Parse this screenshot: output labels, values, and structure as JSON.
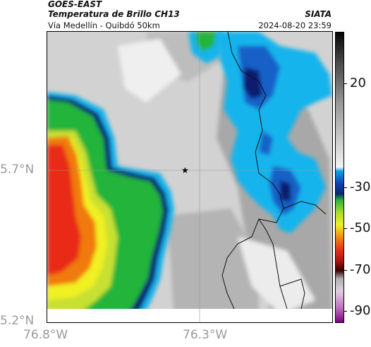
{
  "header": {
    "source": "GOES-EAST",
    "product": "Temperatura de Brillo CH13",
    "route": "Vía Medellín - Quibdó 50km",
    "agency": "SIATA",
    "datetime": "2024-08-20 23:59"
  },
  "axes": {
    "lat_labels": [
      "5.7°N",
      "5.2°N"
    ],
    "lon_labels": [
      "76.8°W",
      "76.3°W"
    ]
  },
  "colorbar": {
    "labels": [
      "20",
      "-30",
      "-50",
      "-70",
      "-90"
    ],
    "values": [
      20,
      -30,
      -50,
      -70,
      -90
    ],
    "range": [
      -95,
      45
    ],
    "stops": [
      {
        "v": 45,
        "c": "#050505"
      },
      {
        "v": 30,
        "c": "#4a4a4a"
      },
      {
        "v": 10,
        "c": "#9a9a9a"
      },
      {
        "v": -20,
        "c": "#f2f2f2"
      },
      {
        "v": -22,
        "c": "#0aa0e6"
      },
      {
        "v": -28,
        "c": "#1040b0"
      },
      {
        "v": -33,
        "c": "#0a2a70"
      },
      {
        "v": -36,
        "c": "#28b43c"
      },
      {
        "v": -42,
        "c": "#aadc2a"
      },
      {
        "v": -48,
        "c": "#f0f020"
      },
      {
        "v": -54,
        "c": "#f08a10"
      },
      {
        "v": -60,
        "c": "#e83018"
      },
      {
        "v": -66,
        "c": "#a01010"
      },
      {
        "v": -70,
        "c": "#3a0000"
      },
      {
        "v": -74,
        "c": "#b0b0b0"
      },
      {
        "v": -80,
        "c": "#e0d0e0"
      },
      {
        "v": -88,
        "c": "#c070c0"
      },
      {
        "v": -95,
        "c": "#800080"
      }
    ]
  },
  "map": {
    "marker_icon": "star-icon",
    "colors": {
      "gray_light": "#d4d4d4",
      "gray_mid": "#a8a8a8",
      "cyan": "#14b4ec",
      "blue": "#1460c8",
      "navy": "#0a1e6e",
      "green": "#22b43a",
      "yellow_green": "#c8e030",
      "yellow": "#f0f020",
      "orange": "#f07a10",
      "red": "#e82a18",
      "gridline": "#999999"
    }
  }
}
